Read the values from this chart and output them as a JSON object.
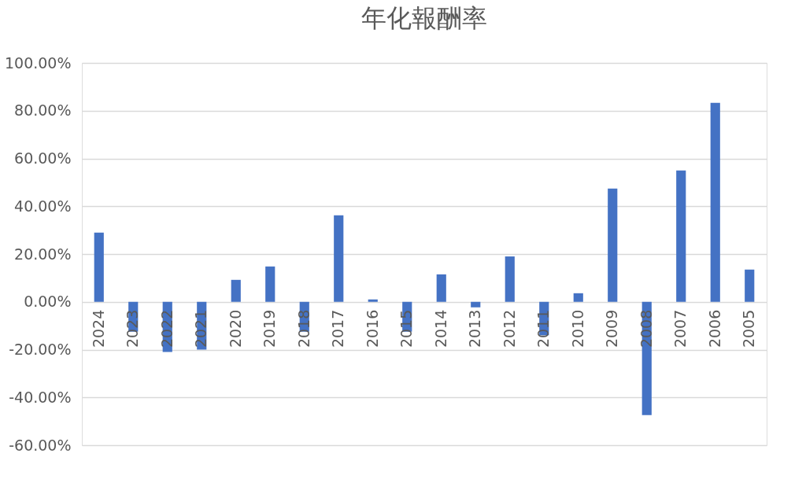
{
  "chart_data": {
    "type": "bar",
    "title": "年化報酬率",
    "categories": [
      "2024",
      "2023",
      "2022",
      "2021",
      "2020",
      "2019",
      "2018",
      "2017",
      "2016",
      "2015",
      "2014",
      "2013",
      "2012",
      "2011",
      "2010",
      "2009",
      "2008",
      "2007",
      "2006",
      "2005"
    ],
    "values": [
      29,
      -12.5,
      -21,
      -20,
      9.2,
      14.8,
      -12.5,
      36.2,
      1,
      -12.5,
      11.5,
      -2.3,
      19,
      -14,
      3.6,
      47.4,
      -47.4,
      55,
      83.3,
      13.5
    ],
    "color": "#4472c4",
    "ylim": [
      -60,
      100
    ],
    "yticks": [
      {
        "value": -60,
        "label": "-60.00%"
      },
      {
        "value": -40,
        "label": "-40.00%"
      },
      {
        "value": -20,
        "label": "-20.00%"
      },
      {
        "value": 0,
        "label": "0.00%"
      },
      {
        "value": 20,
        "label": "20.00%"
      },
      {
        "value": 40,
        "label": "40.00%"
      },
      {
        "value": 60,
        "label": "60.00%"
      },
      {
        "value": 80,
        "label": "80.00%"
      },
      {
        "value": 100,
        "label": "100.00%"
      }
    ],
    "grid": "y"
  }
}
